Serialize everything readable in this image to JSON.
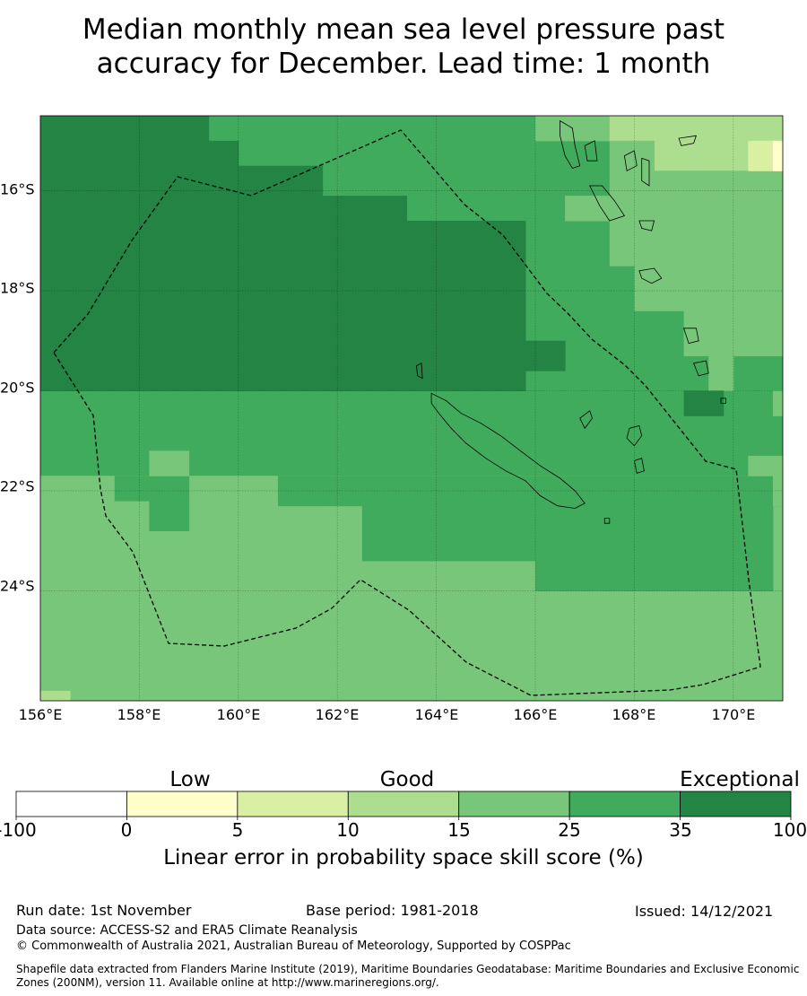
{
  "title": {
    "line1": "Median monthly mean sea level pressure past",
    "line2": "accuracy for December. Lead time: 1 month"
  },
  "map": {
    "lon_range": [
      156,
      171
    ],
    "lat_range": [
      -26.2,
      -14.5
    ],
    "lon_ticks": [
      "156°E",
      "158°E",
      "160°E",
      "162°E",
      "164°E",
      "166°E",
      "168°E",
      "170°E"
    ],
    "lon_tick_values": [
      156,
      158,
      160,
      162,
      164,
      166,
      168,
      170
    ],
    "lat_ticks": [
      "16°S",
      "18°S",
      "20°S",
      "22°S",
      "24°S"
    ],
    "lat_tick_values": [
      -16,
      -18,
      -20,
      -22,
      -24
    ],
    "cell_class_colors": [
      "#ffffff",
      "#ffffcc",
      "#d9f0a3",
      "#addd8e",
      "#78c679",
      "#41ab5d",
      "#238443"
    ],
    "coast_color": "#000000",
    "boundary_color": "#000000"
  },
  "colorbar": {
    "categories": [
      {
        "label": "Low",
        "value": 2.5
      },
      {
        "label": "Good",
        "value": 20
      },
      {
        "label": "Exceptional",
        "value": 100
      }
    ],
    "ticks": [
      "-100",
      "0",
      "5",
      "10",
      "15",
      "25",
      "35",
      "100"
    ],
    "colors": [
      "#ffffff",
      "#ffffcc",
      "#d9f0a3",
      "#addd8e",
      "#78c679",
      "#41ab5d",
      "#238443"
    ],
    "label": "Linear error in probability space skill score (%)"
  },
  "footer": {
    "run_date": "Run date: 1st November",
    "base_period": "Base period: 1981-2018",
    "issued": "Issued: 14/12/2021",
    "data_source": "Data source: ACCESS-S2 and ERA5 Climate Reanalysis",
    "copyright": "© Commonwealth of Australia 2021, Australian Bureau of Meteorology, Supported by COSPPac",
    "shapefile": "Shapefile data extracted from Flanders Marine Institute (2019), Maritime Boundaries Geodatabase: Maritime Boundaries and Exclusive Economic Zones (200NM), version 11. Available online at http://www.marineregions.org/."
  }
}
